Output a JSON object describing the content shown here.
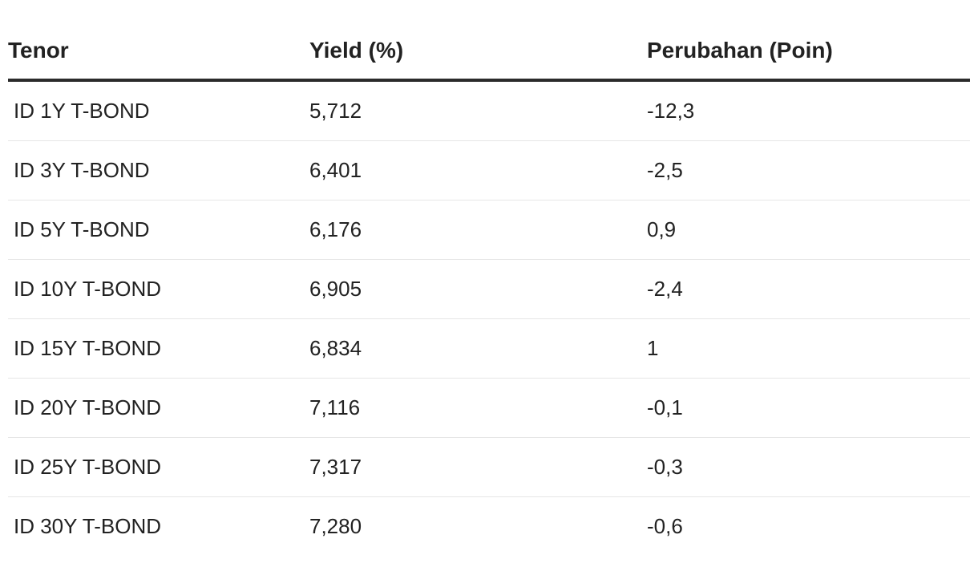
{
  "table": {
    "headers": [
      "Tenor",
      "Yield (%)",
      "Perubahan (Poin)"
    ],
    "rows": [
      {
        "tenor": "ID 1Y T-BOND",
        "yield": "5,712",
        "change": "-12,3"
      },
      {
        "tenor": "ID 3Y T-BOND",
        "yield": "6,401",
        "change": "-2,5"
      },
      {
        "tenor": "ID 5Y T-BOND",
        "yield": "6,176",
        "change": "0,9"
      },
      {
        "tenor": "ID 10Y T-BOND",
        "yield": "6,905",
        "change": "-2,4"
      },
      {
        "tenor": "ID 15Y T-BOND",
        "yield": "6,834",
        "change": "1"
      },
      {
        "tenor": "ID 20Y T-BOND",
        "yield": "7,116",
        "change": "-0,1"
      },
      {
        "tenor": "ID 25Y T-BOND",
        "yield": "7,317",
        "change": "-0,3"
      },
      {
        "tenor": "ID 30Y T-BOND",
        "yield": "7,280",
        "change": "-0,6"
      }
    ]
  }
}
